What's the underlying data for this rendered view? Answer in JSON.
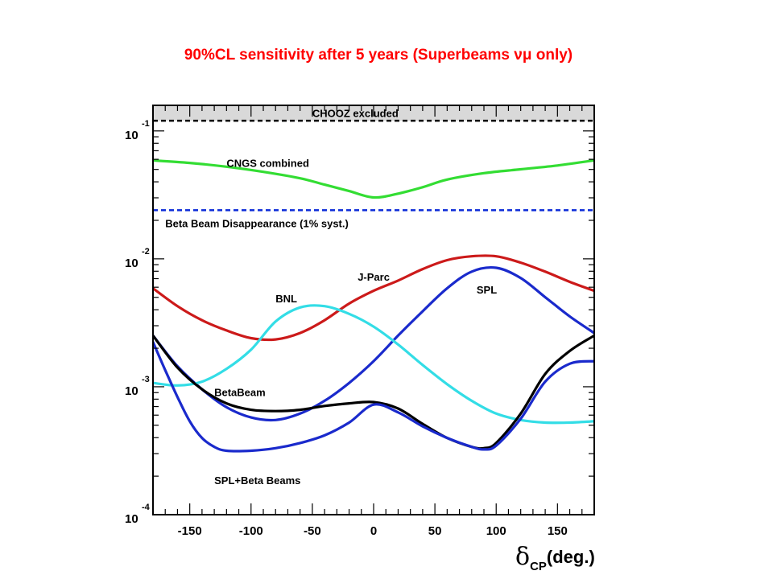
{
  "title": "90%CL sensitivity after 5 years (Superbeams νμ only)",
  "chart_data": {
    "type": "line",
    "title": "90%CL sensitivity after 5 years (Superbeams νμ only)",
    "xlabel_symbol": "δ",
    "xlabel_subscript": "CP",
    "xlabel_unit": "(deg.)",
    "xlim": [
      -180,
      180
    ],
    "ylim_log10": [
      -4,
      -0.8
    ],
    "y_scale": "log",
    "x_ticks": [
      -150,
      -100,
      -50,
      0,
      50,
      100,
      150
    ],
    "y_ticks": [
      {
        "base": "10",
        "exp": "-1",
        "log10": -1
      },
      {
        "base": "10",
        "exp": "-2",
        "log10": -2
      },
      {
        "base": "10",
        "exp": "-3",
        "log10": -3
      },
      {
        "base": "10",
        "exp": "-4",
        "log10": -4
      }
    ],
    "regions": [
      {
        "label": "CHOOZ excluded",
        "from_log10": -0.92,
        "to_log10": -0.8,
        "fill": "#d9d9d9",
        "boundary_color": "#000000",
        "boundary_style": "dashed"
      }
    ],
    "hlines": [
      {
        "name": "Beta Beam Disappearance (1% syst.)",
        "log10": -1.62,
        "color": "#0a2ad8",
        "style": "dashed"
      }
    ],
    "series": [
      {
        "name": "CNGS combined",
        "color": "#33dd33",
        "x": [
          -180,
          -150,
          -120,
          -90,
          -60,
          -40,
          -20,
          0,
          20,
          40,
          60,
          90,
          120,
          150,
          180
        ],
        "log10": [
          -1.23,
          -1.25,
          -1.28,
          -1.32,
          -1.37,
          -1.42,
          -1.47,
          -1.52,
          -1.49,
          -1.44,
          -1.38,
          -1.33,
          -1.3,
          -1.27,
          -1.23
        ]
      },
      {
        "name": "J-Parc",
        "color": "#cc1a1a",
        "x": [
          -180,
          -160,
          -140,
          -120,
          -100,
          -80,
          -60,
          -40,
          -20,
          0,
          20,
          40,
          60,
          80,
          100,
          120,
          140,
          160,
          180
        ],
        "log10": [
          -2.23,
          -2.37,
          -2.48,
          -2.56,
          -2.62,
          -2.63,
          -2.58,
          -2.48,
          -2.35,
          -2.25,
          -2.17,
          -2.08,
          -2.01,
          -1.98,
          -1.98,
          -2.03,
          -2.1,
          -2.18,
          -2.25
        ]
      },
      {
        "name": "SPL",
        "color": "#1a2acc",
        "x": [
          -180,
          -160,
          -140,
          -120,
          -100,
          -80,
          -60,
          -40,
          -20,
          0,
          20,
          40,
          60,
          80,
          100,
          120,
          140,
          160,
          180
        ],
        "log10": [
          -2.6,
          -2.84,
          -3.02,
          -3.16,
          -3.24,
          -3.26,
          -3.21,
          -3.11,
          -2.97,
          -2.8,
          -2.6,
          -2.41,
          -2.23,
          -2.1,
          -2.07,
          -2.15,
          -2.3,
          -2.45,
          -2.58
        ]
      },
      {
        "name": "BNL",
        "color": "#33dde6",
        "x": [
          -180,
          -160,
          -140,
          -120,
          -100,
          -80,
          -60,
          -40,
          -20,
          0,
          20,
          40,
          60,
          80,
          100,
          120,
          140,
          160,
          180
        ],
        "log10": [
          -2.97,
          -2.99,
          -2.96,
          -2.86,
          -2.71,
          -2.49,
          -2.38,
          -2.37,
          -2.43,
          -2.53,
          -2.67,
          -2.83,
          -2.98,
          -3.11,
          -3.21,
          -3.26,
          -3.28,
          -3.28,
          -3.27
        ]
      },
      {
        "name": "BetaBeam",
        "color": "#000000",
        "x": [
          -180,
          -160,
          -140,
          -120,
          -100,
          -80,
          -60,
          -40,
          -20,
          0,
          20,
          40,
          60,
          80,
          90,
          100,
          120,
          140,
          160,
          180
        ],
        "log10": [
          -2.6,
          -2.85,
          -3.02,
          -3.13,
          -3.18,
          -3.19,
          -3.18,
          -3.15,
          -3.13,
          -3.12,
          -3.17,
          -3.29,
          -3.4,
          -3.47,
          -3.48,
          -3.44,
          -3.21,
          -2.9,
          -2.72,
          -2.6
        ]
      },
      {
        "name": "SPL+Beta Beams",
        "color": "#1a2acc",
        "x": [
          -180,
          -170,
          -160,
          -150,
          -140,
          -130,
          -120,
          -100,
          -80,
          -60,
          -40,
          -20,
          0,
          20,
          40,
          60,
          80,
          90,
          100,
          120,
          140,
          160,
          180
        ],
        "log10": [
          -2.65,
          -2.87,
          -3.08,
          -3.27,
          -3.4,
          -3.47,
          -3.5,
          -3.5,
          -3.48,
          -3.44,
          -3.38,
          -3.28,
          -3.14,
          -3.2,
          -3.31,
          -3.4,
          -3.47,
          -3.49,
          -3.46,
          -3.25,
          -2.96,
          -2.82,
          -2.8
        ]
      }
    ],
    "annotations": [
      {
        "text": "CHOOZ excluded",
        "x": -50,
        "log10": -0.86,
        "anchor": "start"
      },
      {
        "text": "CNGS combined",
        "x": -120,
        "log10": -1.25,
        "anchor": "start"
      },
      {
        "text": "Beta Beam Disappearance (1% syst.)",
        "x": -170,
        "log10": -1.72,
        "anchor": "start"
      },
      {
        "text": "J-Parc",
        "x": -13,
        "log10": -2.14,
        "anchor": "start"
      },
      {
        "text": "SPL",
        "x": 84,
        "log10": -2.24,
        "anchor": "start"
      },
      {
        "text": "BNL",
        "x": -80,
        "log10": -2.31,
        "anchor": "start"
      },
      {
        "text": "BetaBeam",
        "x": -130,
        "log10": -3.04,
        "anchor": "start"
      },
      {
        "text": "SPL+Beta Beams",
        "x": -130,
        "log10": -3.73,
        "anchor": "start"
      }
    ]
  }
}
